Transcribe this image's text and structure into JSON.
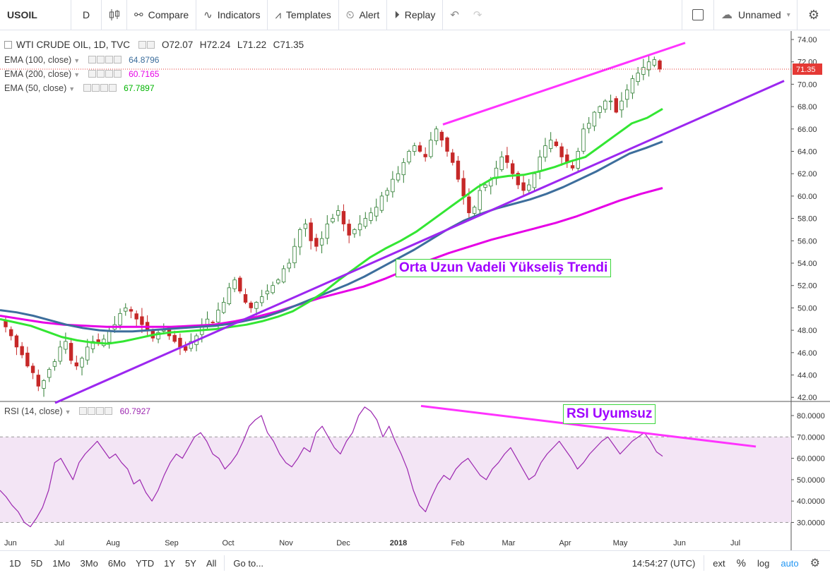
{
  "toolbar": {
    "symbol": "USOIL",
    "interval": "D",
    "compare": "Compare",
    "indicators": "Indicators",
    "templates": "Templates",
    "alert": "Alert",
    "replay": "Replay",
    "layout_name": "Unnamed"
  },
  "main_legend": {
    "title": "WTI CRUDE OIL, 1D, TVC",
    "open": "O72.07",
    "high": "H72.24",
    "low": "L71.22",
    "close": "C71.35"
  },
  "ema_legends": [
    {
      "name": "EMA (100, close)",
      "value": "64.8796",
      "color": "#3d6e9c"
    },
    {
      "name": "EMA (200, close)",
      "value": "60.7165",
      "color": "#e600e6"
    },
    {
      "name": "EMA (50, close)",
      "value": "67.7897",
      "color": "#00c800"
    }
  ],
  "rsi_legend": {
    "name": "RSI (14, close)",
    "value": "60.7927",
    "color": "#9c27b0"
  },
  "price_axis": {
    "ticks": [
      "74.00",
      "72.00",
      "70.00",
      "68.00",
      "66.00",
      "64.00",
      "62.00",
      "60.00",
      "58.00",
      "56.00",
      "54.00",
      "52.00",
      "50.00",
      "48.00",
      "46.00",
      "44.00",
      "42.00"
    ],
    "last_price": "71.35",
    "last_price_color": "#e53935"
  },
  "rsi_axis": {
    "ticks": [
      "80.0000",
      "70.0000",
      "60.0000",
      "50.0000",
      "40.0000",
      "30.0000"
    ],
    "band_upper": 70,
    "band_lower": 30
  },
  "time_axis": {
    "labels": [
      "Jun",
      "Jul",
      "Aug",
      "Sep",
      "Oct",
      "Nov",
      "Dec",
      "2018",
      "Feb",
      "Mar",
      "Apr",
      "May",
      "Jun",
      "Jul"
    ]
  },
  "annotations": {
    "trend_label": "Orta Uzun Vadeli Yükseliş Trendi",
    "rsi_label": "RSI Uyumsuz"
  },
  "bottom": {
    "ranges": [
      "1D",
      "5D",
      "1Mo",
      "3Mo",
      "6Mo",
      "YTD",
      "1Y",
      "5Y",
      "All"
    ],
    "goto": "Go to...",
    "time": "14:54:27 (UTC)",
    "ext": "ext",
    "percent": "%",
    "log": "log",
    "auto": "auto"
  },
  "colors": {
    "up_candle": "#2e7d32",
    "down_candle": "#c62828",
    "trendline": "#9c27f0",
    "channel": "#ff33ff",
    "ema50": "#33e633",
    "ema100": "#3d6e9c",
    "ema200": "#e600e6",
    "rsi_line": "#9c27b0",
    "rsi_band": "#f3e5f5"
  },
  "chart_data": {
    "type": "candlestick",
    "instrument": "WTI CRUDE OIL, 1D, TVC",
    "ylim": [
      41,
      74.5
    ],
    "months": [
      "Jun",
      "Jul",
      "Aug",
      "Sep",
      "Oct",
      "Nov",
      "Dec",
      "2018",
      "Feb",
      "Mar",
      "Apr",
      "May"
    ],
    "close_path": [
      48.3,
      47.5,
      46.5,
      45.8,
      44.8,
      44.2,
      43.0,
      43.5,
      44.5,
      45.2,
      46.5,
      47.0,
      45.3,
      44.8,
      45.5,
      46.5,
      47.0,
      46.8,
      47.2,
      48.0,
      48.5,
      49.5,
      50.0,
      49.7,
      49.0,
      48.5,
      48.0,
      47.3,
      47.8,
      48.0,
      47.5,
      47.0,
      46.5,
      46.2,
      47.0,
      47.5,
      48.5,
      49.0,
      48.7,
      49.8,
      50.5,
      51.8,
      52.5,
      51.5,
      50.5,
      50.0,
      50.5,
      51.0,
      51.5,
      52.0,
      52.5,
      53.5,
      54.0,
      55.5,
      57.0,
      57.5,
      56.0,
      55.5,
      56.2,
      57.5,
      58.0,
      58.7,
      57.5,
      56.5,
      57.0,
      57.5,
      58.0,
      58.5,
      59.0,
      60.0,
      60.5,
      61.5,
      62.0,
      63.0,
      64.0,
      64.5,
      64.0,
      63.5,
      65.0,
      66.0,
      65.0,
      64.0,
      63.0,
      61.5,
      60.0,
      58.5,
      59.0,
      60.5,
      61.0,
      61.5,
      62.5,
      63.5,
      63.0,
      62.0,
      61.0,
      60.5,
      61.0,
      62.0,
      63.5,
      64.5,
      65.0,
      64.5,
      63.5,
      63.0,
      62.5,
      64.0,
      66.0,
      66.5,
      67.5,
      68.0,
      68.5,
      68.5,
      67.5,
      68.5,
      69.5,
      70.5,
      71.0,
      71.5,
      72.0,
      72.2,
      71.35
    ],
    "ema50_path": [
      49.0,
      48.7,
      48.4,
      47.9,
      47.4,
      47.1,
      46.9,
      46.8,
      47.0,
      47.3,
      47.6,
      47.8,
      47.9,
      48.0,
      48.1,
      48.3,
      48.5,
      48.8,
      49.2,
      49.7,
      50.5,
      51.4,
      52.5,
      53.5,
      54.5,
      55.3,
      56.0,
      56.8,
      57.8,
      58.8,
      59.8,
      60.8,
      61.6,
      61.8,
      61.9,
      62.2,
      62.6,
      63.1,
      63.5,
      64.5,
      65.5,
      66.5,
      67.0,
      67.8
    ],
    "ema100_path": [
      49.8,
      49.6,
      49.3,
      48.9,
      48.5,
      48.2,
      48.0,
      47.9,
      47.9,
      48.0,
      48.1,
      48.2,
      48.3,
      48.4,
      48.6,
      48.9,
      49.2,
      49.7,
      50.3,
      50.9,
      51.5,
      52.1,
      52.8,
      53.6,
      54.4,
      55.2,
      56.1,
      57.0,
      57.8,
      58.4,
      58.9,
      59.3,
      59.7,
      60.2,
      60.8,
      61.5,
      62.2,
      63.0,
      63.8,
      64.3,
      64.88
    ],
    "ema200_path": [
      49.3,
      49.0,
      48.7,
      48.5,
      48.4,
      48.3,
      48.3,
      48.3,
      48.3,
      48.4,
      48.5,
      48.8,
      49.2,
      49.7,
      50.3,
      50.9,
      51.4,
      51.9,
      52.6,
      53.4,
      54.2,
      54.9,
      55.5,
      56.1,
      56.6,
      57.1,
      57.6,
      58.2,
      58.9,
      59.6,
      60.2,
      60.72
    ],
    "rsi_path": [
      45,
      42,
      38,
      35,
      30,
      28,
      32,
      37,
      45,
      58,
      60,
      55,
      50,
      58,
      62,
      65,
      68,
      64,
      60,
      62,
      58,
      55,
      48,
      50,
      44,
      40,
      45,
      52,
      58,
      62,
      60,
      65,
      70,
      72,
      68,
      62,
      60,
      55,
      58,
      62,
      68,
      75,
      78,
      80,
      72,
      68,
      62,
      58,
      56,
      60,
      65,
      63,
      72,
      75,
      70,
      65,
      62,
      68,
      72,
      80,
      84,
      82,
      78,
      70,
      75,
      68,
      62,
      55,
      45,
      38,
      35,
      42,
      48,
      52,
      50,
      55,
      58,
      60,
      56,
      52,
      50,
      55,
      58,
      62,
      65,
      60,
      55,
      50,
      52,
      58,
      62,
      65,
      68,
      64,
      60,
      55,
      58,
      62,
      65,
      68,
      70,
      66,
      62,
      65,
      68,
      70,
      72,
      68,
      63,
      61
    ],
    "price_ticks": [
      74,
      72,
      70,
      68,
      66,
      64,
      62,
      60,
      58,
      56,
      54,
      52,
      50,
      48,
      46,
      44,
      42
    ],
    "last_close": 71.35
  }
}
